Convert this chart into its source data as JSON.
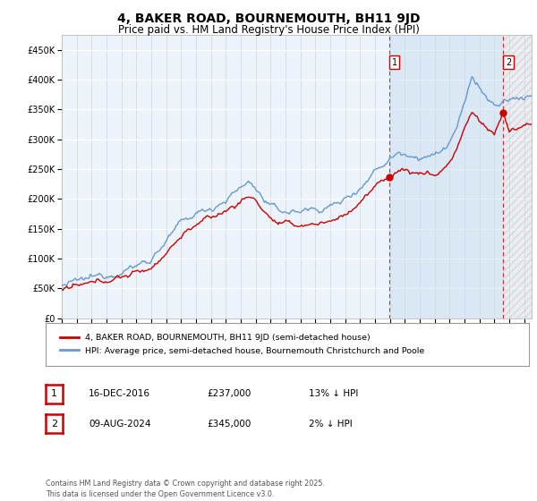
{
  "title": "4, BAKER ROAD, BOURNEMOUTH, BH11 9JD",
  "subtitle": "Price paid vs. HM Land Registry's House Price Index (HPI)",
  "legend_line1": "4, BAKER ROAD, BOURNEMOUTH, BH11 9JD (semi-detached house)",
  "legend_line2": "HPI: Average price, semi-detached house, Bournemouth Christchurch and Poole",
  "marker1_date": "16-DEC-2016",
  "marker1_price": "£237,000",
  "marker1_hpi": "13% ↓ HPI",
  "marker1_label": "1",
  "marker2_date": "09-AUG-2024",
  "marker2_price": "£345,000",
  "marker2_hpi": "2% ↓ HPI",
  "marker2_label": "2",
  "footer": "Contains HM Land Registry data © Crown copyright and database right 2025.\nThis data is licensed under the Open Government Licence v3.0.",
  "red_color": "#cc0000",
  "blue_color": "#6699cc",
  "background_color": "#ffffff",
  "plot_bg_color": "#dce8f5",
  "plot_bg_color2": "#edf3fa",
  "grid_color": "#ffffff",
  "ylim": [
    0,
    475000
  ],
  "yticks": [
    0,
    50000,
    100000,
    150000,
    200000,
    250000,
    300000,
    350000,
    400000,
    450000
  ],
  "year_start": 1995,
  "year_end": 2027,
  "marker1_x": 2016.96,
  "marker2_x": 2024.6,
  "title_fontsize": 10,
  "subtitle_fontsize": 8.5,
  "axis_fontsize": 7,
  "legend_fontsize": 7.5
}
